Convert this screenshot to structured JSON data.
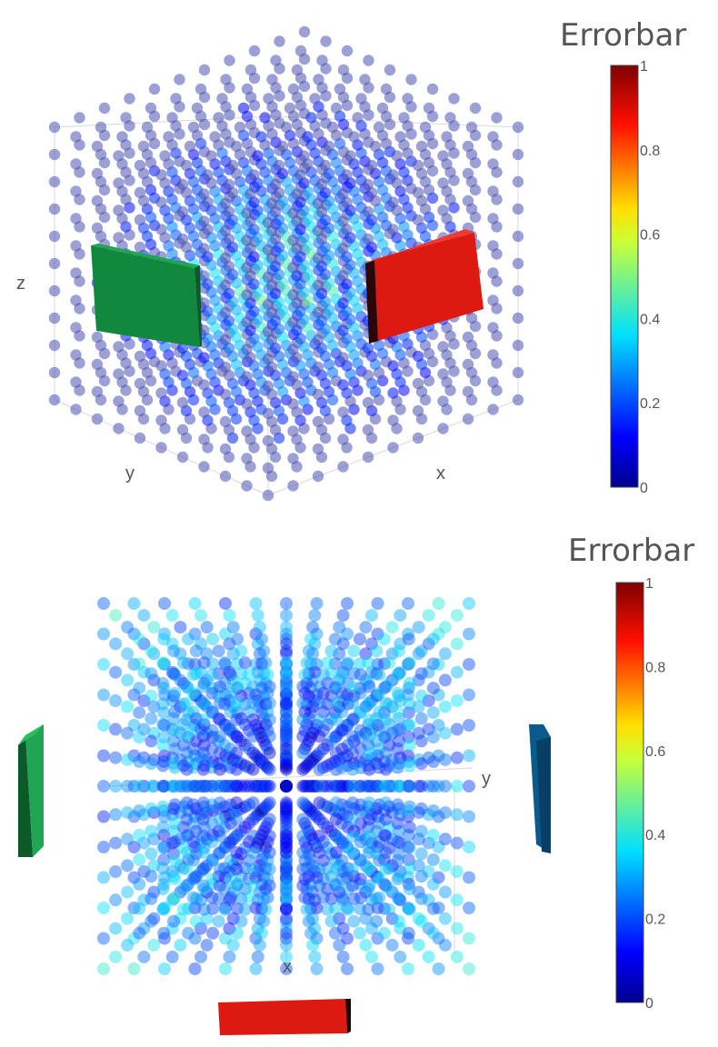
{
  "chart_data": [
    {
      "type": "scatter",
      "view": "3d-perspective",
      "colorbar": {
        "title": "Errorbar",
        "range": [
          0,
          1
        ],
        "ticks": [
          "0",
          "0.2",
          "0.4",
          "0.6",
          "0.8",
          "1"
        ],
        "colorscale": [
          "#00008f",
          "#0060ff",
          "#00ffff",
          "#ffff00",
          "#ff2000",
          "#800000"
        ]
      },
      "axes": {
        "x": "x",
        "y": "y",
        "z": "z"
      },
      "marker_default_color": "#4a52b0",
      "objects": [
        {
          "name": "green-panel",
          "color": "#12883e"
        },
        {
          "name": "red-panel",
          "color": "#dd1a12"
        }
      ]
    },
    {
      "type": "scatter",
      "view": "3d-top",
      "colorbar": {
        "title": "Errorbar",
        "range": [
          0,
          1
        ],
        "ticks": [
          "0",
          "0.2",
          "0.4",
          "0.6",
          "0.8",
          "1"
        ],
        "colorscale": [
          "#00008f",
          "#0060ff",
          "#00ffff",
          "#ffff00",
          "#ff2000",
          "#800000"
        ]
      },
      "axes": {
        "x": "x",
        "y": "y"
      },
      "marker_default_color": "#2a4fc0",
      "objects": [
        {
          "name": "green-panel",
          "color": "#12883e"
        },
        {
          "name": "blue-panel",
          "color": "#0a5a8e"
        },
        {
          "name": "red-panel",
          "color": "#dd1a12"
        }
      ]
    }
  ]
}
